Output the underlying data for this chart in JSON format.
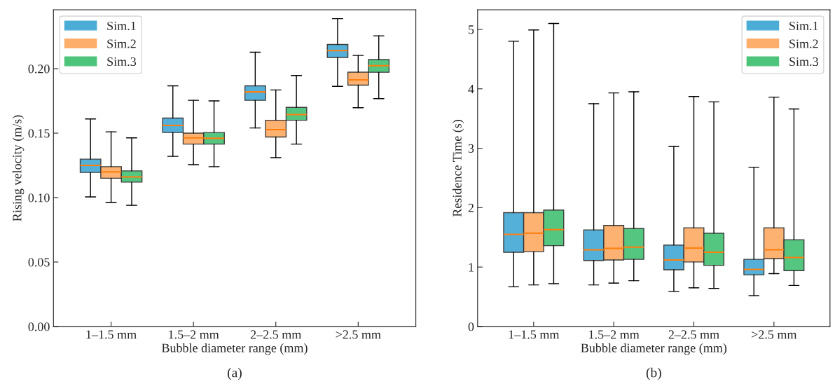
{
  "chart_data": [
    {
      "type": "box",
      "title": "(a)",
      "xlabel": "Bubble diameter range (mm)",
      "ylabel": "Rising velocity (m/s)",
      "categories": [
        "1–1.5 mm",
        "1.5–2 mm",
        "2–2.5 mm",
        ">2.5 mm"
      ],
      "ylim": [
        0,
        0.2457
      ],
      "yticks": [
        {
          "value": 0,
          "label": "0.00"
        },
        {
          "value": 0.05,
          "label": "0.05"
        },
        {
          "value": 0.1,
          "label": "0.10"
        },
        {
          "value": 0.15,
          "label": "0.15"
        },
        {
          "value": 0.2,
          "label": "0.20"
        }
      ],
      "legend": "top left",
      "grid": false,
      "series": [
        {
          "name": "Sim.1",
          "color": "#4bacd6",
          "boxes": [
            {
              "low": 0.1005,
              "q1": 0.1195,
              "median": 0.125,
              "q3": 0.1298,
              "high": 0.161
            },
            {
              "low": 0.132,
              "q1": 0.1505,
              "median": 0.156,
              "q3": 0.1617,
              "high": 0.1867
            },
            {
              "low": 0.154,
              "q1": 0.1755,
              "median": 0.182,
              "q3": 0.1867,
              "high": 0.2128
            },
            {
              "low": 0.1863,
              "q1": 0.2087,
              "median": 0.214,
              "q3": 0.2188,
              "high": 0.2388
            }
          ]
        },
        {
          "name": "Sim.2",
          "color": "#fdae6b",
          "boxes": [
            {
              "low": 0.0963,
              "q1": 0.115,
              "median": 0.12,
              "q3": 0.124,
              "high": 0.151
            },
            {
              "low": 0.1255,
              "q1": 0.1415,
              "median": 0.1463,
              "q3": 0.15,
              "high": 0.1755
            },
            {
              "low": 0.131,
              "q1": 0.147,
              "median": 0.1527,
              "q3": 0.16,
              "high": 0.1835
            },
            {
              "low": 0.1697,
              "q1": 0.1872,
              "median": 0.1913,
              "q3": 0.1973,
              "high": 0.2103
            }
          ]
        },
        {
          "name": "Sim.3",
          "color": "#4cc47a",
          "boxes": [
            {
              "low": 0.094,
              "q1": 0.112,
              "median": 0.116,
              "q3": 0.1207,
              "high": 0.1463
            },
            {
              "low": 0.124,
              "q1": 0.1415,
              "median": 0.146,
              "q3": 0.1505,
              "high": 0.175
            },
            {
              "low": 0.1415,
              "q1": 0.16,
              "median": 0.1644,
              "q3": 0.17,
              "high": 0.1947
            },
            {
              "low": 0.1768,
              "q1": 0.1972,
              "median": 0.2023,
              "q3": 0.2071,
              "high": 0.2255
            }
          ]
        }
      ]
    },
    {
      "type": "box",
      "title": "(b)",
      "xlabel": "Bubble diameter range (mm)",
      "ylabel": "Residence Time (s)",
      "categories": [
        "1–1.5 mm",
        "1.5–2 mm",
        "2–2.5 mm",
        ">2.5 mm"
      ],
      "ylim": [
        0,
        5.33
      ],
      "yticks": [
        0,
        1,
        2,
        3,
        4,
        5
      ],
      "legend": "top right",
      "grid": false,
      "series": [
        {
          "name": "Sim.1",
          "color": "#4bacd6",
          "boxes": [
            {
              "low": 0.67,
              "q1": 1.25,
              "median": 1.55,
              "q3": 1.915,
              "high": 4.8
            },
            {
              "low": 0.7,
              "q1": 1.11,
              "median": 1.29,
              "q3": 1.625,
              "high": 3.75
            },
            {
              "low": 0.59,
              "q1": 0.955,
              "median": 1.12,
              "q3": 1.37,
              "high": 3.03
            },
            {
              "low": 0.52,
              "q1": 0.87,
              "median": 0.96,
              "q3": 1.13,
              "high": 2.68
            }
          ]
        },
        {
          "name": "Sim.2",
          "color": "#fdae6b",
          "boxes": [
            {
              "low": 0.7,
              "q1": 1.26,
              "median": 1.57,
              "q3": 1.915,
              "high": 4.99
            },
            {
              "low": 0.73,
              "q1": 1.12,
              "median": 1.315,
              "q3": 1.7,
              "high": 3.93
            },
            {
              "low": 0.65,
              "q1": 1.085,
              "median": 1.32,
              "q3": 1.66,
              "high": 3.87
            },
            {
              "low": 0.89,
              "q1": 1.14,
              "median": 1.29,
              "q3": 1.66,
              "high": 3.86
            }
          ]
        },
        {
          "name": "Sim.3",
          "color": "#4cc47a",
          "boxes": [
            {
              "low": 0.72,
              "q1": 1.36,
              "median": 1.63,
              "q3": 1.96,
              "high": 5.1
            },
            {
              "low": 0.77,
              "q1": 1.13,
              "median": 1.335,
              "q3": 1.65,
              "high": 3.95
            },
            {
              "low": 0.64,
              "q1": 1.03,
              "median": 1.25,
              "q3": 1.57,
              "high": 3.78
            },
            {
              "low": 0.69,
              "q1": 0.94,
              "median": 1.16,
              "q3": 1.46,
              "high": 3.66
            }
          ]
        }
      ]
    }
  ]
}
